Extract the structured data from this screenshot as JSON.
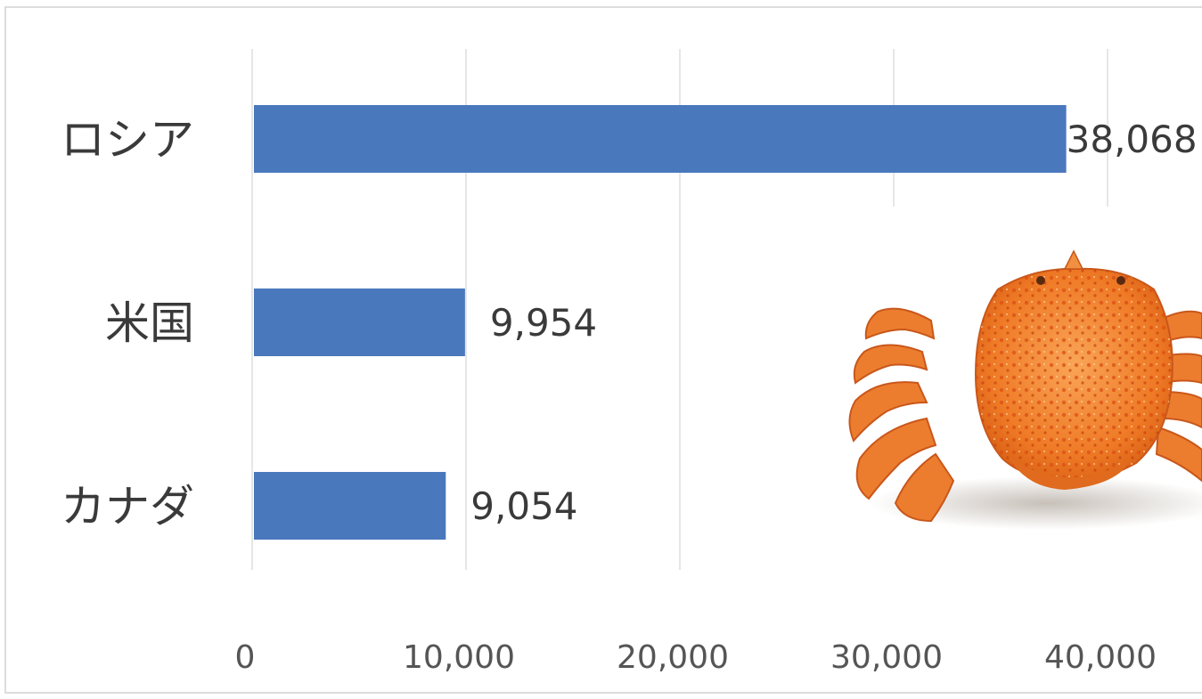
{
  "chart_data": {
    "type": "bar",
    "orientation": "horizontal",
    "categories": [
      "ロシア",
      "米国",
      "カナダ"
    ],
    "values": [
      38068,
      9954,
      9054
    ],
    "value_labels": [
      "38,068",
      "9,954",
      "9,054"
    ],
    "xlim": [
      0,
      40000
    ],
    "x_ticks": [
      0,
      10000,
      20000,
      30000,
      40000
    ],
    "x_tick_labels": [
      "0",
      "10,000",
      "20,000",
      "30,000",
      "40,000"
    ],
    "title": "",
    "xlabel": "",
    "ylabel": "",
    "grid": "vertical",
    "legend": "none"
  },
  "colors": {
    "bar": "#4a78bd",
    "grid": "#e6e6e6",
    "border": "#dcdcdc",
    "crab_shell": "#f07a24",
    "crab_spot": "#d94e12",
    "crab_light": "#f7a95a"
  },
  "decoration": {
    "image": "hairy-crab-photo"
  }
}
